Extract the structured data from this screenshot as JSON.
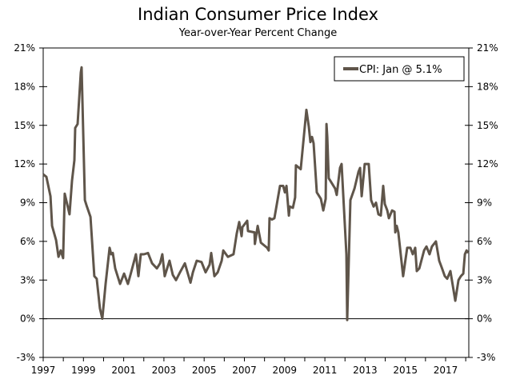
{
  "chart_data": {
    "type": "line",
    "title": "Indian Consumer Price Index",
    "subtitle": "Year-over-Year Percent Change",
    "xlabel": "",
    "ylabel": "",
    "xlim": [
      1997,
      2018.15
    ],
    "ylim": [
      -3,
      21
    ],
    "y_ticks": [
      -3,
      0,
      3,
      6,
      9,
      12,
      15,
      18,
      21
    ],
    "y_tick_labels": [
      "-3%",
      "0%",
      "3%",
      "6%",
      "9%",
      "12%",
      "15%",
      "18%",
      "21%"
    ],
    "x_ticks": [
      1997,
      1999,
      2001,
      2003,
      2005,
      2007,
      2009,
      2011,
      2013,
      2015,
      2017
    ],
    "x_tick_labels": [
      "1997",
      "1999",
      "2001",
      "2003",
      "2005",
      "2007",
      "2009",
      "2011",
      "2013",
      "2015",
      "2017"
    ],
    "legend_position": "top-right",
    "grid": false,
    "series": [
      {
        "name": "CPI: Jan @ 5.1%",
        "color": "#5f554a",
        "points": [
          [
            1997.0,
            11.2
          ],
          [
            1997.16,
            11.0
          ],
          [
            1997.36,
            9.5
          ],
          [
            1997.44,
            7.2
          ],
          [
            1997.64,
            6.1
          ],
          [
            1997.76,
            4.8
          ],
          [
            1997.87,
            5.3
          ],
          [
            1997.99,
            4.7
          ],
          [
            1998.07,
            9.7
          ],
          [
            1998.31,
            8.1
          ],
          [
            1998.43,
            10.7
          ],
          [
            1998.55,
            12.3
          ],
          [
            1998.59,
            14.8
          ],
          [
            1998.71,
            15.1
          ],
          [
            1998.87,
            19.1
          ],
          [
            1998.91,
            19.5
          ],
          [
            1999.07,
            9.2
          ],
          [
            1999.15,
            8.8
          ],
          [
            1999.35,
            7.9
          ],
          [
            1999.54,
            3.3
          ],
          [
            1999.66,
            3.1
          ],
          [
            1999.82,
            0.8
          ],
          [
            1999.94,
            0.0
          ],
          [
            2000.1,
            2.7
          ],
          [
            2000.3,
            5.5
          ],
          [
            2000.38,
            5.0
          ],
          [
            2000.46,
            5.1
          ],
          [
            2000.58,
            3.9
          ],
          [
            2000.82,
            2.7
          ],
          [
            2001.02,
            3.5
          ],
          [
            2001.21,
            2.7
          ],
          [
            2001.37,
            3.6
          ],
          [
            2001.61,
            5.0
          ],
          [
            2001.73,
            3.3
          ],
          [
            2001.85,
            5.0
          ],
          [
            2002.01,
            5.0
          ],
          [
            2002.21,
            5.1
          ],
          [
            2002.41,
            4.3
          ],
          [
            2002.65,
            3.9
          ],
          [
            2002.81,
            4.3
          ],
          [
            2002.92,
            5.0
          ],
          [
            2003.04,
            3.3
          ],
          [
            2003.28,
            4.5
          ],
          [
            2003.44,
            3.4
          ],
          [
            2003.6,
            3.0
          ],
          [
            2003.8,
            3.6
          ],
          [
            2004.04,
            4.3
          ],
          [
            2004.32,
            2.8
          ],
          [
            2004.44,
            3.6
          ],
          [
            2004.63,
            4.5
          ],
          [
            2004.87,
            4.4
          ],
          [
            2005.07,
            3.6
          ],
          [
            2005.27,
            4.2
          ],
          [
            2005.35,
            5.1
          ],
          [
            2005.51,
            3.3
          ],
          [
            2005.67,
            3.6
          ],
          [
            2005.87,
            4.5
          ],
          [
            2005.95,
            5.3
          ],
          [
            2006.18,
            4.8
          ],
          [
            2006.46,
            5.0
          ],
          [
            2006.62,
            6.6
          ],
          [
            2006.74,
            7.5
          ],
          [
            2006.86,
            6.4
          ],
          [
            2006.9,
            7.1
          ],
          [
            2007.14,
            7.6
          ],
          [
            2007.18,
            6.8
          ],
          [
            2007.5,
            6.7
          ],
          [
            2007.52,
            5.8
          ],
          [
            2007.66,
            7.2
          ],
          [
            2007.82,
            5.9
          ],
          [
            2008.13,
            5.5
          ],
          [
            2008.21,
            5.3
          ],
          [
            2008.25,
            7.8
          ],
          [
            2008.37,
            7.7
          ],
          [
            2008.49,
            7.8
          ],
          [
            2008.77,
            10.3
          ],
          [
            2008.93,
            10.3
          ],
          [
            2009.01,
            9.8
          ],
          [
            2009.09,
            10.3
          ],
          [
            2009.21,
            8.0
          ],
          [
            2009.25,
            8.7
          ],
          [
            2009.41,
            8.6
          ],
          [
            2009.52,
            9.4
          ],
          [
            2009.56,
            11.9
          ],
          [
            2009.8,
            11.6
          ],
          [
            2010.08,
            16.2
          ],
          [
            2010.2,
            14.9
          ],
          [
            2010.28,
            13.7
          ],
          [
            2010.36,
            14.1
          ],
          [
            2010.44,
            13.6
          ],
          [
            2010.6,
            9.8
          ],
          [
            2010.8,
            9.3
          ],
          [
            2010.92,
            8.4
          ],
          [
            2011.04,
            9.3
          ],
          [
            2011.08,
            15.1
          ],
          [
            2011.12,
            14.1
          ],
          [
            2011.19,
            10.9
          ],
          [
            2011.27,
            10.7
          ],
          [
            2011.39,
            10.4
          ],
          [
            2011.51,
            10.1
          ],
          [
            2011.59,
            9.6
          ],
          [
            2011.75,
            11.7
          ],
          [
            2011.83,
            12.0
          ],
          [
            2012.07,
            5.0
          ],
          [
            2012.11,
            -0.1
          ],
          [
            2012.27,
            9.2
          ],
          [
            2012.47,
            10.1
          ],
          [
            2012.67,
            11.4
          ],
          [
            2012.75,
            11.7
          ],
          [
            2012.83,
            9.5
          ],
          [
            2012.98,
            12.0
          ],
          [
            2013.18,
            12.0
          ],
          [
            2013.3,
            9.2
          ],
          [
            2013.42,
            8.7
          ],
          [
            2013.54,
            9.0
          ],
          [
            2013.66,
            8.1
          ],
          [
            2013.78,
            8.0
          ],
          [
            2013.9,
            10.3
          ],
          [
            2013.98,
            8.9
          ],
          [
            2014.1,
            8.4
          ],
          [
            2014.18,
            7.8
          ],
          [
            2014.34,
            8.4
          ],
          [
            2014.46,
            8.3
          ],
          [
            2014.5,
            6.7
          ],
          [
            2014.57,
            7.2
          ],
          [
            2014.65,
            6.7
          ],
          [
            2014.89,
            3.3
          ],
          [
            2015.09,
            5.5
          ],
          [
            2015.25,
            5.5
          ],
          [
            2015.37,
            5.0
          ],
          [
            2015.49,
            5.5
          ],
          [
            2015.57,
            3.7
          ],
          [
            2015.69,
            3.9
          ],
          [
            2015.93,
            5.3
          ],
          [
            2016.05,
            5.6
          ],
          [
            2016.2,
            5.0
          ],
          [
            2016.32,
            5.6
          ],
          [
            2016.52,
            6.0
          ],
          [
            2016.68,
            4.5
          ],
          [
            2016.8,
            4.0
          ],
          [
            2016.96,
            3.3
          ],
          [
            2017.08,
            3.1
          ],
          [
            2017.24,
            3.7
          ],
          [
            2017.48,
            1.4
          ],
          [
            2017.64,
            3.0
          ],
          [
            2017.76,
            3.3
          ],
          [
            2017.88,
            3.5
          ],
          [
            2017.96,
            5.0
          ],
          [
            2018.04,
            5.3
          ],
          [
            2018.12,
            5.1
          ]
        ]
      }
    ]
  }
}
